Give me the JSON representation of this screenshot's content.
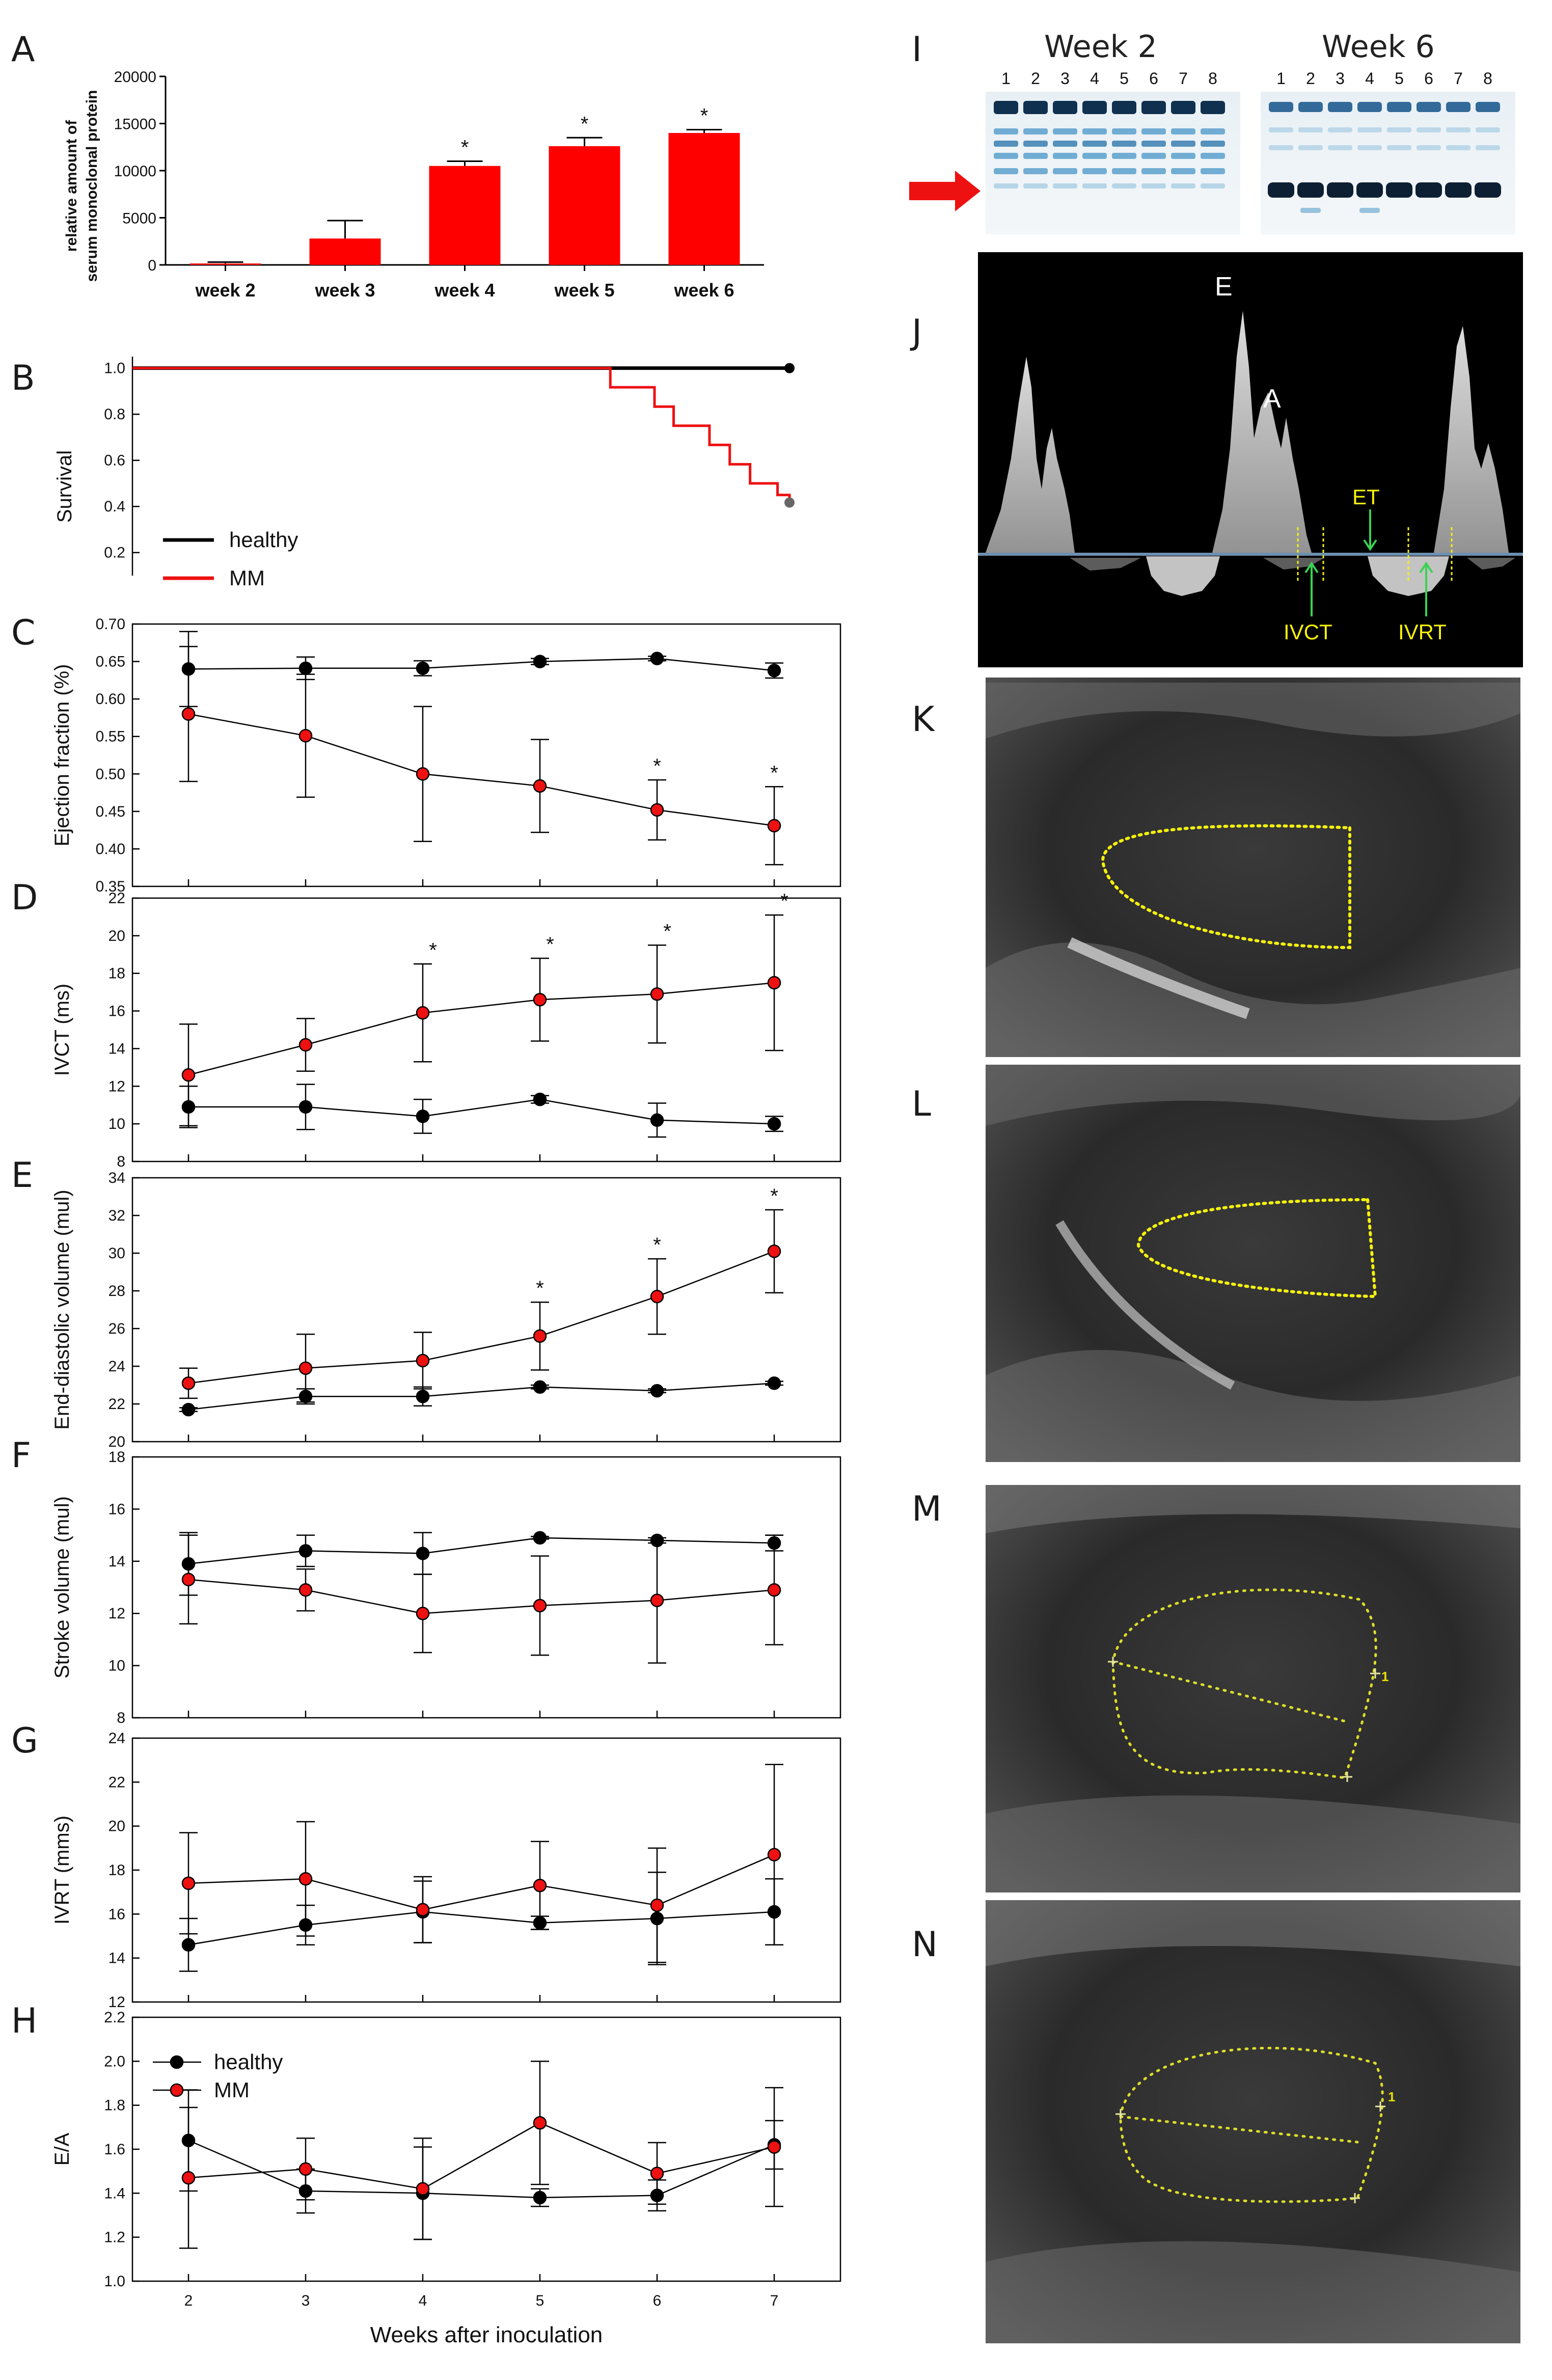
{
  "panels": {
    "A": "A",
    "B": "B",
    "C": "C",
    "D": "D",
    "E": "E",
    "F": "F",
    "G": "G",
    "H": "H",
    "I": "I",
    "J": "J",
    "K": "K",
    "L": "L",
    "M": "M",
    "N": "N"
  },
  "chart_data": [
    {
      "panel": "A",
      "type": "bar",
      "ylabel_line1": "relative amount of",
      "ylabel_line2": "serum monoclonal protein",
      "categories": [
        "week 2",
        "week 3",
        "week 4",
        "week 5",
        "week 6"
      ],
      "values": [
        150,
        2800,
        10500,
        12600,
        14000
      ],
      "errors": [
        150,
        1900,
        500,
        900,
        350
      ],
      "significant": [
        false,
        false,
        true,
        true,
        true
      ],
      "ylim": [
        0,
        20000
      ],
      "yticks": [
        "0",
        "5000",
        "10000",
        "15000",
        "20000"
      ],
      "bar_color": "#ff0000"
    },
    {
      "panel": "B",
      "type": "line",
      "ylabel": "Survival",
      "ylim": [
        0.2,
        1.0
      ],
      "yticks": [
        "0.2",
        "0.4",
        "0.6",
        "0.8",
        "1.0"
      ],
      "xlim": [
        1.5,
        7.2
      ],
      "series": [
        {
          "name": "healthy",
          "color": "#000000",
          "step": [
            [
              1.5,
              1.0
            ],
            [
              7.0,
              1.0
            ]
          ]
        },
        {
          "name": "MM",
          "color": "#ee1111",
          "step": [
            [
              1.5,
              1.0
            ],
            [
              5.5,
              1.0
            ],
            [
              5.5,
              0.917
            ],
            [
              5.87,
              0.917
            ],
            [
              5.87,
              0.833
            ],
            [
              6.03,
              0.833
            ],
            [
              6.03,
              0.75
            ],
            [
              6.33,
              0.75
            ],
            [
              6.33,
              0.667
            ],
            [
              6.5,
              0.667
            ],
            [
              6.5,
              0.583
            ],
            [
              6.67,
              0.583
            ],
            [
              6.67,
              0.5
            ],
            [
              6.9,
              0.5
            ],
            [
              6.9,
              0.45
            ],
            [
              7.0,
              0.45
            ],
            [
              7.0,
              0.417
            ]
          ]
        }
      ],
      "legend": [
        "healthy",
        "MM"
      ]
    },
    {
      "panel": "C",
      "type": "line",
      "ylabel": "Ejection fraction (%)",
      "ylim": [
        0.35,
        0.7
      ],
      "yticks": [
        "0.35",
        "0.40",
        "0.45",
        "0.50",
        "0.55",
        "0.60",
        "0.65",
        "0.70"
      ],
      "x": [
        2,
        3,
        4,
        5,
        6,
        7
      ],
      "series": [
        {
          "name": "healthy",
          "color": "#000000",
          "values": [
            0.64,
            0.641,
            0.641,
            0.65,
            0.654,
            0.638
          ],
          "errors": [
            0.05,
            0.015,
            0.01,
            0.004,
            0.003,
            0.01
          ]
        },
        {
          "name": "MM",
          "color": "#ee1111",
          "values": [
            0.58,
            0.551,
            0.5,
            0.484,
            0.452,
            0.431
          ],
          "errors": [
            0.09,
            0.082,
            0.09,
            0.062,
            0.04,
            0.052
          ]
        }
      ],
      "stars_at": [
        6,
        7
      ]
    },
    {
      "panel": "D",
      "type": "line",
      "ylabel": "IVCT (ms)",
      "ylim": [
        8,
        22
      ],
      "yticks": [
        "8",
        "10",
        "12",
        "14",
        "16",
        "18",
        "20",
        "22"
      ],
      "x": [
        2,
        3,
        4,
        5,
        6,
        7
      ],
      "series": [
        {
          "name": "healthy",
          "color": "#000000",
          "values": [
            10.9,
            10.9,
            10.4,
            11.3,
            10.2,
            10.0
          ],
          "errors": [
            1.1,
            1.2,
            0.9,
            0.2,
            0.9,
            0.4
          ]
        },
        {
          "name": "MM",
          "color": "#ee1111",
          "values": [
            12.6,
            14.2,
            15.9,
            16.6,
            16.9,
            17.5
          ],
          "errors": [
            2.7,
            1.4,
            2.6,
            2.2,
            2.6,
            3.6
          ]
        }
      ],
      "stars_at": [
        4,
        5,
        6,
        7
      ]
    },
    {
      "panel": "E",
      "type": "line",
      "ylabel": "End-diastolic volume (mul)",
      "ylim": [
        20,
        34
      ],
      "yticks": [
        "20",
        "22",
        "24",
        "26",
        "28",
        "30",
        "32",
        "34"
      ],
      "x": [
        2,
        3,
        4,
        5,
        6,
        7
      ],
      "series": [
        {
          "name": "healthy",
          "color": "#000000",
          "values": [
            21.7,
            22.4,
            22.4,
            22.9,
            22.7,
            23.1
          ],
          "errors": [
            0.1,
            0.4,
            0.5,
            0.1,
            0.1,
            0.1
          ]
        },
        {
          "name": "MM",
          "color": "#ee1111",
          "values": [
            23.1,
            23.9,
            24.3,
            25.6,
            27.7,
            30.1
          ],
          "errors": [
            0.8,
            1.8,
            1.5,
            1.8,
            2.0,
            2.2
          ]
        }
      ],
      "stars_at": [
        5,
        6,
        7
      ]
    },
    {
      "panel": "F",
      "type": "line",
      "ylabel": "Stroke volume (mul)",
      "ylim": [
        8,
        18
      ],
      "yticks": [
        "8",
        "10",
        "12",
        "14",
        "16",
        "18"
      ],
      "x": [
        2,
        3,
        4,
        5,
        6,
        7
      ],
      "series": [
        {
          "name": "healthy",
          "color": "#000000",
          "values": [
            13.9,
            14.4,
            14.3,
            14.9,
            14.8,
            14.7
          ],
          "errors": [
            1.2,
            0.6,
            0.8,
            0.05,
            0.1,
            0.3
          ]
        },
        {
          "name": "MM",
          "color": "#ee1111",
          "values": [
            13.3,
            12.9,
            12.0,
            12.3,
            12.5,
            12.9
          ],
          "errors": [
            1.7,
            0.8,
            1.5,
            1.9,
            2.4,
            2.1
          ]
        }
      ]
    },
    {
      "panel": "G",
      "type": "line",
      "ylabel": "IVRT (mms)",
      "ylim": [
        12,
        24
      ],
      "yticks": [
        "12",
        "14",
        "16",
        "18",
        "20",
        "22",
        "24"
      ],
      "x": [
        2,
        3,
        4,
        5,
        6,
        7
      ],
      "series": [
        {
          "name": "healthy",
          "color": "#000000",
          "values": [
            14.6,
            15.5,
            16.1,
            15.6,
            15.8,
            16.1
          ],
          "errors": [
            1.2,
            0.9,
            1.4,
            0.3,
            2.1,
            1.5
          ]
        },
        {
          "name": "MM",
          "color": "#ee1111",
          "values": [
            17.4,
            17.6,
            16.2,
            17.3,
            16.4,
            18.7
          ],
          "errors": [
            2.3,
            2.6,
            1.5,
            2.0,
            2.6,
            4.1
          ]
        }
      ]
    },
    {
      "panel": "H",
      "type": "line",
      "ylabel": "E/A",
      "xlabel": "Weeks after inoculation",
      "ylim": [
        1.0,
        2.2
      ],
      "yticks": [
        "1.0",
        "1.2",
        "1.4",
        "1.6",
        "1.8",
        "2.0",
        "2.2"
      ],
      "xticks": [
        "2",
        "3",
        "4",
        "5",
        "6",
        "7"
      ],
      "x": [
        2,
        3,
        4,
        5,
        6,
        7
      ],
      "series": [
        {
          "name": "healthy",
          "color": "#000000",
          "values": [
            1.64,
            1.41,
            1.4,
            1.38,
            1.39,
            1.62
          ],
          "errors": [
            0.23,
            0.1,
            0.21,
            0.04,
            0.07,
            0.11
          ]
        },
        {
          "name": "MM",
          "color": "#ee1111",
          "values": [
            1.47,
            1.51,
            1.42,
            1.72,
            1.49,
            1.61
          ],
          "errors": [
            0.32,
            0.14,
            0.23,
            0.28,
            0.14,
            0.27
          ]
        }
      ],
      "legend": [
        "healthy",
        "MM"
      ]
    }
  ],
  "gel": {
    "left_title": "Week 2",
    "right_title": "Week 6",
    "lanes": [
      "1",
      "2",
      "3",
      "4",
      "5",
      "6",
      "7",
      "8"
    ]
  },
  "doppler": {
    "E": "E",
    "A": "A",
    "ET": "ET",
    "IVCT": "IVCT",
    "IVRT": "IVRT"
  },
  "echo": {
    "marker_M": "1",
    "marker_N": "1"
  },
  "colors": {
    "mm_red": "#ee1111",
    "healthy_black": "#000000",
    "bar_red": "#ff0000",
    "trace_yellow": "#f5f20a",
    "arrow_green": "#39d353"
  }
}
